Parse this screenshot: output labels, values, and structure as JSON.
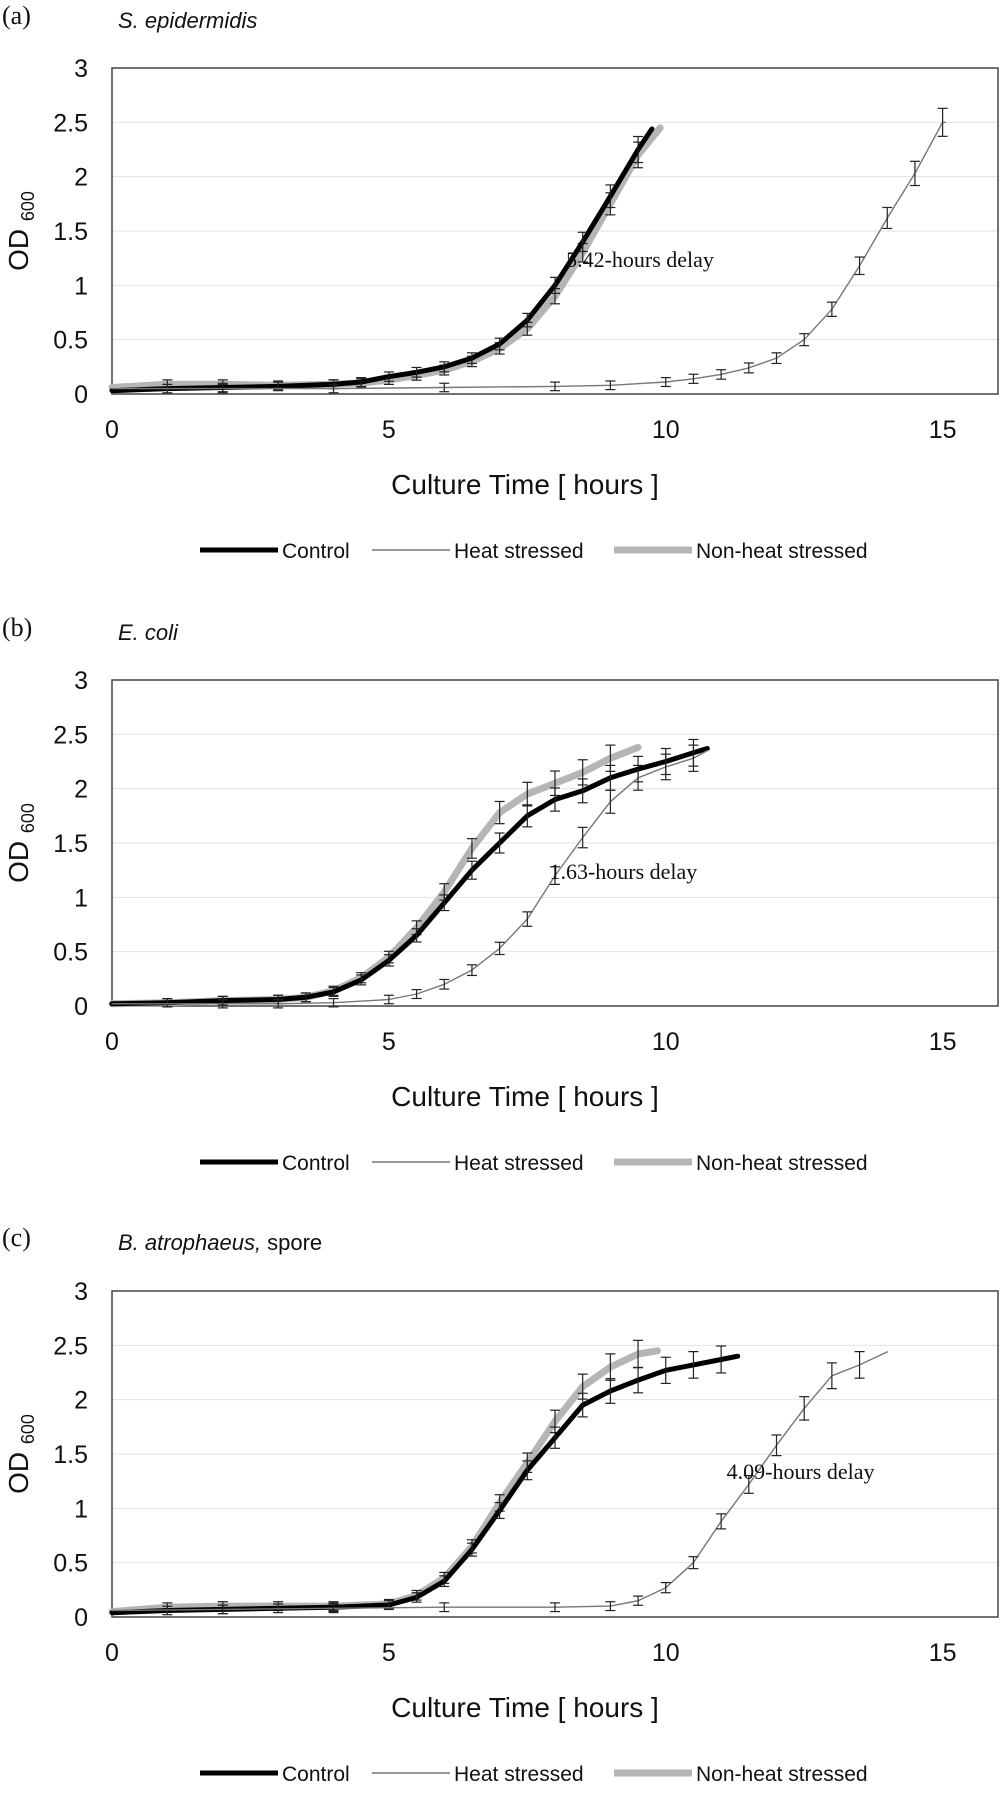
{
  "chart_data": [
    {
      "type": "line",
      "panel_label": "(a)",
      "species": "S. epidermidis",
      "species_note": "",
      "xlabel": "Culture Time [ hours ]",
      "ylabel": "OD",
      "ylabel_sub": "600",
      "xlim": [
        0,
        16
      ],
      "ylim": [
        0,
        3
      ],
      "xticks": [
        "0",
        "5",
        "10",
        "15"
      ],
      "yticks": [
        "0",
        "0.5",
        "1",
        "1.5",
        "2",
        "2.5",
        "3"
      ],
      "grid": true,
      "legend_position": "bottom",
      "annotation": "5.42-hours delay",
      "series": [
        {
          "name": "Control",
          "color": "#000000",
          "points": [
            [
              0,
              0.03
            ],
            [
              1,
              0.05
            ],
            [
              2,
              0.06
            ],
            [
              3,
              0.07
            ],
            [
              4,
              0.09
            ],
            [
              4.5,
              0.11
            ],
            [
              5,
              0.16
            ],
            [
              5.5,
              0.2
            ],
            [
              6,
              0.25
            ],
            [
              6.5,
              0.33
            ],
            [
              7,
              0.46
            ],
            [
              7.5,
              0.68
            ],
            [
              8,
              1.0
            ],
            [
              8.5,
              1.4
            ],
            [
              9,
              1.82
            ],
            [
              9.5,
              2.25
            ],
            [
              9.75,
              2.44
            ]
          ]
        },
        {
          "name": "Heat stressed",
          "color": "#777777",
          "points": [
            [
              0,
              0.05
            ],
            [
              2,
              0.05
            ],
            [
              4,
              0.05
            ],
            [
              6,
              0.06
            ],
            [
              8,
              0.07
            ],
            [
              9,
              0.08
            ],
            [
              10,
              0.11
            ],
            [
              10.5,
              0.14
            ],
            [
              11,
              0.18
            ],
            [
              11.5,
              0.24
            ],
            [
              12,
              0.33
            ],
            [
              12.5,
              0.5
            ],
            [
              13,
              0.78
            ],
            [
              13.5,
              1.18
            ],
            [
              14,
              1.62
            ],
            [
              14.5,
              2.03
            ],
            [
              15,
              2.5
            ],
            [
              15.05,
              2.5
            ]
          ]
        },
        {
          "name": "Non-heat stressed",
          "color": "#b5b5b5",
          "points": [
            [
              0,
              0.06
            ],
            [
              1,
              0.09
            ],
            [
              2,
              0.09
            ],
            [
              3,
              0.08
            ],
            [
              4,
              0.09
            ],
            [
              4.5,
              0.1
            ],
            [
              5,
              0.13
            ],
            [
              5.5,
              0.17
            ],
            [
              6,
              0.22
            ],
            [
              6.5,
              0.3
            ],
            [
              7,
              0.42
            ],
            [
              7.5,
              0.6
            ],
            [
              8,
              0.9
            ],
            [
              8.5,
              1.3
            ],
            [
              9,
              1.75
            ],
            [
              9.5,
              2.2
            ],
            [
              9.9,
              2.45
            ]
          ]
        }
      ]
    },
    {
      "type": "line",
      "panel_label": "(b)",
      "species": "E. coli",
      "species_note": "",
      "xlabel": "Culture Time [ hours ]",
      "ylabel": "OD",
      "ylabel_sub": "600",
      "xlim": [
        0,
        16
      ],
      "ylim": [
        0,
        3
      ],
      "xticks": [
        "0",
        "5",
        "10",
        "15"
      ],
      "yticks": [
        "0",
        "0.5",
        "1",
        "1.5",
        "2",
        "2.5",
        "3"
      ],
      "grid": true,
      "legend_position": "bottom",
      "annotation": "1.63-hours delay",
      "series": [
        {
          "name": "Control",
          "color": "#000000",
          "points": [
            [
              0,
              0.02
            ],
            [
              1,
              0.03
            ],
            [
              2,
              0.05
            ],
            [
              3,
              0.06
            ],
            [
              3.5,
              0.08
            ],
            [
              4,
              0.13
            ],
            [
              4.5,
              0.24
            ],
            [
              5,
              0.42
            ],
            [
              5.5,
              0.65
            ],
            [
              6,
              0.95
            ],
            [
              6.5,
              1.25
            ],
            [
              7,
              1.5
            ],
            [
              7.5,
              1.75
            ],
            [
              8,
              1.9
            ],
            [
              8.5,
              1.98
            ],
            [
              9,
              2.1
            ],
            [
              9.5,
              2.18
            ],
            [
              10,
              2.25
            ],
            [
              10.5,
              2.33
            ],
            [
              10.75,
              2.37
            ]
          ]
        },
        {
          "name": "Heat stressed",
          "color": "#777777",
          "points": [
            [
              0,
              0.02
            ],
            [
              2,
              0.02
            ],
            [
              3,
              0.02
            ],
            [
              4,
              0.03
            ],
            [
              5,
              0.06
            ],
            [
              5.5,
              0.11
            ],
            [
              6,
              0.2
            ],
            [
              6.5,
              0.33
            ],
            [
              7,
              0.53
            ],
            [
              7.5,
              0.8
            ],
            [
              8,
              1.2
            ],
            [
              8.5,
              1.55
            ],
            [
              9,
              1.88
            ],
            [
              9.5,
              2.1
            ],
            [
              10,
              2.2
            ],
            [
              10.5,
              2.28
            ],
            [
              10.75,
              2.35
            ]
          ]
        },
        {
          "name": "Non-heat stressed",
          "color": "#b5b5b5",
          "points": [
            [
              0,
              0.02
            ],
            [
              1,
              0.03
            ],
            [
              2,
              0.05
            ],
            [
              3,
              0.06
            ],
            [
              3.5,
              0.08
            ],
            [
              4,
              0.14
            ],
            [
              4.5,
              0.26
            ],
            [
              5,
              0.45
            ],
            [
              5.5,
              0.72
            ],
            [
              6,
              1.05
            ],
            [
              6.5,
              1.45
            ],
            [
              7,
              1.78
            ],
            [
              7.5,
              1.95
            ],
            [
              8,
              2.05
            ],
            [
              8.5,
              2.15
            ],
            [
              9,
              2.28
            ],
            [
              9.5,
              2.38
            ]
          ]
        }
      ]
    },
    {
      "type": "line",
      "panel_label": "(c)",
      "species": "B. atrophaeus,",
      "species_note": "spore",
      "xlabel": "Culture Time [ hours ]",
      "ylabel": "OD",
      "ylabel_sub": "600",
      "xlim": [
        0,
        16
      ],
      "ylim": [
        0,
        3
      ],
      "xticks": [
        "0",
        "5",
        "10",
        "15"
      ],
      "yticks": [
        "0",
        "0.5",
        "1",
        "1.5",
        "2",
        "2.5",
        "3"
      ],
      "grid": true,
      "legend_position": "bottom",
      "annotation": "4.09-hours delay",
      "series": [
        {
          "name": "Control",
          "color": "#000000",
          "points": [
            [
              0,
              0.04
            ],
            [
              1,
              0.06
            ],
            [
              2,
              0.07
            ],
            [
              3,
              0.08
            ],
            [
              4,
              0.09
            ],
            [
              5,
              0.11
            ],
            [
              5.5,
              0.18
            ],
            [
              6,
              0.33
            ],
            [
              6.5,
              0.62
            ],
            [
              7,
              0.98
            ],
            [
              7.5,
              1.35
            ],
            [
              8,
              1.65
            ],
            [
              8.5,
              1.95
            ],
            [
              9,
              2.08
            ],
            [
              9.5,
              2.18
            ],
            [
              10,
              2.27
            ],
            [
              10.5,
              2.32
            ],
            [
              11,
              2.37
            ],
            [
              11.3,
              2.4
            ]
          ]
        },
        {
          "name": "Heat stressed",
          "color": "#777777",
          "points": [
            [
              0,
              0.06
            ],
            [
              2,
              0.07
            ],
            [
              4,
              0.08
            ],
            [
              6,
              0.09
            ],
            [
              8,
              0.09
            ],
            [
              9,
              0.1
            ],
            [
              9.5,
              0.15
            ],
            [
              10,
              0.27
            ],
            [
              10.5,
              0.5
            ],
            [
              11,
              0.88
            ],
            [
              11.5,
              1.22
            ],
            [
              12,
              1.58
            ],
            [
              12.5,
              1.92
            ],
            [
              13,
              2.22
            ],
            [
              13.5,
              2.32
            ],
            [
              14,
              2.44
            ]
          ]
        },
        {
          "name": "Non-heat stressed",
          "color": "#b5b5b5",
          "points": [
            [
              0,
              0.05
            ],
            [
              1,
              0.09
            ],
            [
              2,
              0.1
            ],
            [
              3,
              0.1
            ],
            [
              4,
              0.1
            ],
            [
              5,
              0.12
            ],
            [
              5.5,
              0.2
            ],
            [
              6,
              0.36
            ],
            [
              6.5,
              0.65
            ],
            [
              7,
              1.05
            ],
            [
              7.5,
              1.42
            ],
            [
              8,
              1.8
            ],
            [
              8.5,
              2.12
            ],
            [
              9,
              2.3
            ],
            [
              9.5,
              2.42
            ],
            [
              9.85,
              2.45
            ]
          ]
        }
      ]
    }
  ]
}
